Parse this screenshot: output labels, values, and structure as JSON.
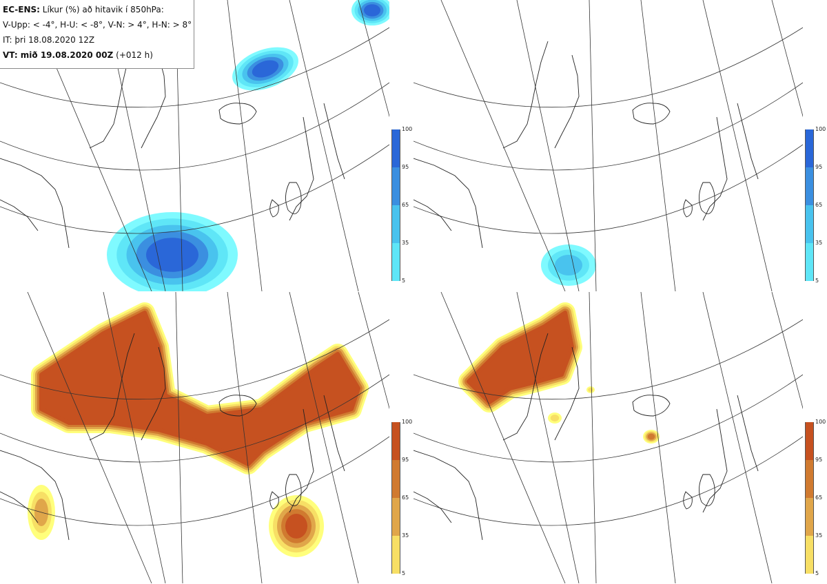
{
  "header": {
    "product": "EC-ENS:",
    "description": "Líkur (%) að hitavik í 850hPa:",
    "thresholds": "V-Upp: < -4°, H-U: < -8°, V-N: > 4°, H-N: > 8°",
    "init_time": "IT: þri 18.08.2020 12Z",
    "valid_prefix": "VT: mið 19.08.2020 00Z",
    "lead": "(+012 h)"
  },
  "colors": {
    "cold_scale": [
      "#7ffaff",
      "#5fe6f7",
      "#49c3ee",
      "#3b8fe0",
      "#2a67d8"
    ],
    "warm_scale": [
      "#ffff7c",
      "#f7df65",
      "#e0a64a",
      "#d07a30",
      "#c65120"
    ],
    "coastline": "#222222",
    "gridline": "#333333"
  },
  "panels": [
    {
      "id": "v-upp",
      "scale": "cold",
      "colorbar_ticks": [
        "100",
        "95",
        "65",
        "35",
        "5"
      ]
    },
    {
      "id": "h-u",
      "scale": "cold",
      "colorbar_ticks": [
        "100",
        "95",
        "65",
        "35",
        "5"
      ]
    },
    {
      "id": "v-n",
      "scale": "warm",
      "colorbar_ticks": [
        "100",
        "95",
        "65",
        "35",
        "5"
      ]
    },
    {
      "id": "h-n",
      "scale": "warm",
      "colorbar_ticks": [
        "100",
        "95",
        "65",
        "35",
        "5"
      ]
    }
  ]
}
